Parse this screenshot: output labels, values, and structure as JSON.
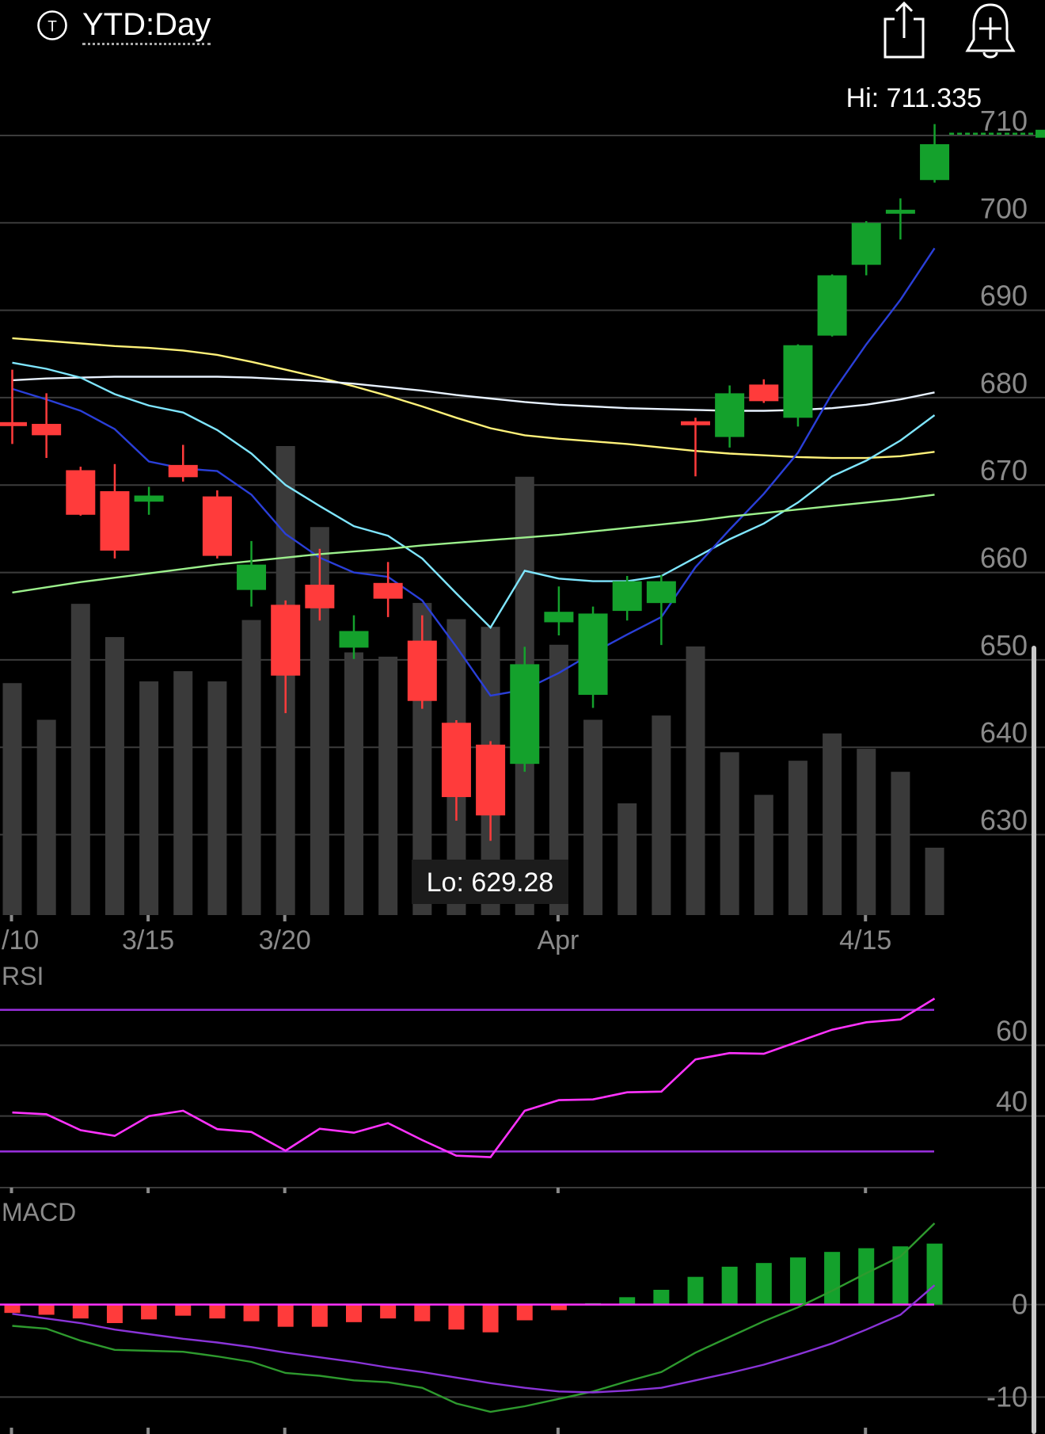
{
  "header": {
    "period": "YTD:Day",
    "period_icon": "T",
    "share_icon": "share-icon",
    "alert_icon": "alert-add-icon"
  },
  "colors": {
    "up": "#14a12c",
    "down": "#ff3b3b",
    "volume": "#3a3a3a",
    "grid": "#3c3c3c",
    "axis_text": "#8a8a8a",
    "ma_yellow": "#fff27a",
    "ma_white": "#e8f2ff",
    "ma_cyan": "#7fe6ff",
    "ma_blue": "#2a3fd8",
    "ma_green": "#9cf08c",
    "rsi": "#ff33ff",
    "rsi_bands": "#9b30e0",
    "macd_line": "#2e9a2e",
    "macd_signal": "#8a34d8"
  },
  "chart_data": [
    {
      "type": "candlestick",
      "title": "",
      "hi_label": "Hi: 711.335",
      "lo_label": "Lo: 629.28",
      "ylim": [
        620.8,
        725.5
      ],
      "y_ticks": [
        630,
        640,
        650,
        660,
        670,
        680,
        690,
        700,
        710
      ],
      "x_ticks": [
        {
          "label": "/10",
          "index": 0
        },
        {
          "label": "3/15",
          "index": 4
        },
        {
          "label": "3/20",
          "index": 8
        },
        {
          "label": "Apr",
          "index": 16
        },
        {
          "label": "4/15",
          "index": 25
        }
      ],
      "last_price": 710.2,
      "candles": [
        {
          "o": 677.2,
          "h": 683.2,
          "l": 674.7,
          "c": 677.0
        },
        {
          "o": 677.0,
          "h": 680.5,
          "l": 673.1,
          "c": 675.7
        },
        {
          "o": 671.7,
          "h": 672.1,
          "l": 666.5,
          "c": 666.6
        },
        {
          "o": 669.3,
          "h": 672.4,
          "l": 661.6,
          "c": 662.5
        },
        {
          "o": 668.1,
          "h": 669.8,
          "l": 666.6,
          "c": 668.8
        },
        {
          "o": 672.3,
          "h": 674.6,
          "l": 670.4,
          "c": 670.9
        },
        {
          "o": 668.7,
          "h": 669.4,
          "l": 661.6,
          "c": 661.9
        },
        {
          "o": 658.0,
          "h": 663.6,
          "l": 656.1,
          "c": 660.9
        },
        {
          "o": 656.3,
          "h": 656.8,
          "l": 643.9,
          "c": 648.2
        },
        {
          "o": 658.6,
          "h": 662.7,
          "l": 654.5,
          "c": 655.9
        },
        {
          "o": 651.4,
          "h": 655.1,
          "l": 650.1,
          "c": 653.3
        },
        {
          "o": 658.8,
          "h": 661.2,
          "l": 654.9,
          "c": 657.0
        },
        {
          "o": 652.2,
          "h": 655.1,
          "l": 644.4,
          "c": 645.3
        },
        {
          "o": 642.8,
          "h": 643.1,
          "l": 631.6,
          "c": 634.3
        },
        {
          "o": 640.3,
          "h": 640.7,
          "l": 629.3,
          "c": 632.2
        },
        {
          "o": 638.1,
          "h": 651.5,
          "l": 637.2,
          "c": 649.5
        },
        {
          "o": 654.3,
          "h": 658.4,
          "l": 652.8,
          "c": 655.5
        },
        {
          "o": 646.0,
          "h": 656.1,
          "l": 644.5,
          "c": 655.3
        },
        {
          "o": 655.6,
          "h": 659.6,
          "l": 654.5,
          "c": 659.0
        },
        {
          "o": 656.5,
          "h": 659.7,
          "l": 651.7,
          "c": 659.0
        },
        {
          "o": 677.3,
          "h": 677.7,
          "l": 671.0,
          "c": 677.1
        },
        {
          "o": 675.5,
          "h": 681.4,
          "l": 674.3,
          "c": 680.5
        },
        {
          "o": 681.5,
          "h": 682.1,
          "l": 679.4,
          "c": 679.6
        },
        {
          "o": 677.7,
          "h": 686.1,
          "l": 676.7,
          "c": 686.0
        },
        {
          "o": 687.1,
          "h": 694.1,
          "l": 687.0,
          "c": 694.0
        },
        {
          "o": 695.2,
          "h": 700.2,
          "l": 694.0,
          "c": 700.0
        },
        {
          "o": 701.5,
          "h": 702.8,
          "l": 698.1,
          "c": 701.5
        },
        {
          "o": 704.9,
          "h": 711.3,
          "l": 704.6,
          "c": 709.0
        }
      ],
      "volume": [
        2.72,
        2.29,
        3.65,
        3.26,
        2.74,
        2.86,
        2.74,
        3.46,
        5.5,
        4.55,
        3.08,
        3.03,
        3.66,
        3.47,
        3.38,
        5.14,
        3.17,
        2.29,
        1.31,
        2.34,
        3.15,
        1.91,
        1.41,
        1.81,
        2.13,
        1.95,
        1.68,
        0.79
      ],
      "series": [
        {
          "name": "",
          "color_key": "ma_yellow",
          "values": [
            686.8,
            686.5,
            686.2,
            685.9,
            685.7,
            685.4,
            684.9,
            684.1,
            683.2,
            682.3,
            681.3,
            680.2,
            679.0,
            677.7,
            676.5,
            675.7,
            675.3,
            675.0,
            674.7,
            674.3,
            673.9,
            673.6,
            673.4,
            673.2,
            673.1,
            673.1,
            673.3,
            673.8
          ]
        },
        {
          "name": "",
          "color_key": "ma_white",
          "values": [
            682.0,
            682.2,
            682.3,
            682.4,
            682.4,
            682.4,
            682.4,
            682.3,
            682.1,
            681.9,
            681.6,
            681.2,
            680.8,
            680.3,
            679.9,
            679.5,
            679.2,
            679.0,
            678.8,
            678.7,
            678.6,
            678.5,
            678.5,
            678.6,
            678.8,
            679.2,
            679.8,
            680.6
          ]
        },
        {
          "name": "",
          "color_key": "ma_cyan",
          "values": [
            684.0,
            683.3,
            682.3,
            680.4,
            679.1,
            678.3,
            676.3,
            673.6,
            670.0,
            667.6,
            665.3,
            664.2,
            661.6,
            657.6,
            653.7,
            660.2,
            659.3,
            659.0,
            659.0,
            659.6,
            661.7,
            663.8,
            665.6,
            668.0,
            671.0,
            672.8,
            675.1,
            678.0
          ]
        },
        {
          "name": "",
          "color_key": "ma_blue",
          "values": [
            681.0,
            679.8,
            678.5,
            676.4,
            672.7,
            671.9,
            671.6,
            668.9,
            664.4,
            661.7,
            660.0,
            659.5,
            656.8,
            651.5,
            645.9,
            646.6,
            648.5,
            650.8,
            652.9,
            654.9,
            660.6,
            664.9,
            669.0,
            673.7,
            680.5,
            686.1,
            691.2,
            697.1
          ]
        },
        {
          "name": "",
          "color_key": "ma_green",
          "values": [
            657.7,
            658.3,
            658.9,
            659.4,
            659.9,
            660.4,
            660.9,
            661.3,
            661.7,
            662.1,
            662.4,
            662.7,
            663.1,
            663.4,
            663.7,
            664.0,
            664.3,
            664.7,
            665.1,
            665.5,
            665.9,
            666.4,
            666.8,
            667.2,
            667.6,
            668.0,
            668.4,
            668.9
          ]
        }
      ]
    },
    {
      "type": "line",
      "title": "RSI",
      "ylim": [
        20,
        80
      ],
      "y_ticks": [
        40,
        60
      ],
      "bands": [
        30,
        70
      ],
      "values": [
        41.0,
        40.5,
        36.0,
        34.4,
        40.0,
        41.5,
        36.3,
        35.5,
        30.2,
        36.4,
        35.3,
        38.0,
        33.2,
        28.8,
        28.4,
        41.5,
        44.5,
        44.7,
        46.7,
        46.9,
        56.0,
        57.8,
        57.6,
        61.0,
        64.4,
        66.5,
        67.3,
        73.2
      ]
    },
    {
      "type": "bar",
      "title": "MACD",
      "ylim": [
        -14,
        10
      ],
      "y_ticks": [
        0,
        -10
      ],
      "histogram": [
        -0.9,
        -1.1,
        -1.5,
        -2.0,
        -1.6,
        -1.2,
        -1.5,
        -1.8,
        -2.4,
        -2.4,
        -1.9,
        -1.5,
        -1.8,
        -2.7,
        -3.0,
        -1.7,
        -0.6,
        0.15,
        0.8,
        1.6,
        3.0,
        4.1,
        4.5,
        5.1,
        5.7,
        6.1,
        6.3,
        6.6
      ],
      "series": [
        {
          "name": "",
          "color_key": "macd_line",
          "values": [
            -2.3,
            -2.6,
            -3.9,
            -4.9,
            -5.0,
            -5.1,
            -5.6,
            -6.2,
            -7.4,
            -7.7,
            -8.2,
            -8.4,
            -9.0,
            -10.7,
            -11.6,
            -11.0,
            -10.2,
            -9.4,
            -8.3,
            -7.3,
            -5.2,
            -3.5,
            -1.8,
            -0.3,
            1.5,
            3.4,
            5.2,
            8.8
          ]
        },
        {
          "name": "",
          "color_key": "macd_signal",
          "values": [
            -1.0,
            -1.5,
            -2.0,
            -2.7,
            -3.2,
            -3.7,
            -4.1,
            -4.6,
            -5.2,
            -5.7,
            -6.2,
            -6.8,
            -7.3,
            -7.9,
            -8.5,
            -9.0,
            -9.4,
            -9.5,
            -9.3,
            -9.0,
            -8.2,
            -7.4,
            -6.5,
            -5.4,
            -4.2,
            -2.7,
            -1.1,
            2.1
          ]
        }
      ]
    }
  ]
}
